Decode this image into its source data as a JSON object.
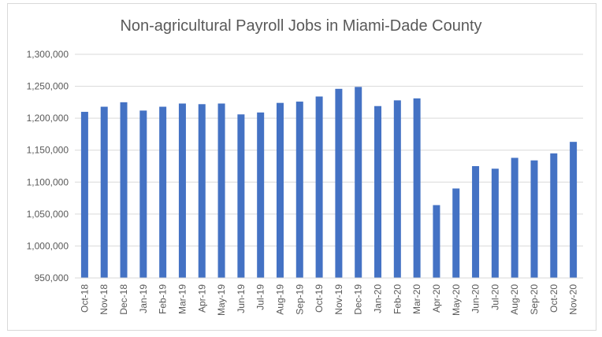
{
  "chart_data": {
    "type": "bar",
    "title": "Non-agricultural Payroll Jobs in Miami-Dade County",
    "xlabel": "",
    "ylabel": "",
    "ylim": [
      950000,
      1300000
    ],
    "yticks": [
      950000,
      1000000,
      1050000,
      1100000,
      1150000,
      1200000,
      1250000,
      1300000
    ],
    "ytick_labels": [
      "950,000",
      "1,000,000",
      "1,050,000",
      "1,100,000",
      "1,150,000",
      "1,200,000",
      "1,250,000",
      "1,300,000"
    ],
    "grid": true,
    "color": "#4472C4",
    "categories": [
      "Oct-18",
      "Nov-18",
      "Dec-18",
      "Jan-19",
      "Feb-19",
      "Mar-19",
      "Apr-19",
      "May-19",
      "Jun-19",
      "Jul-19",
      "Aug-19",
      "Sep-19",
      "Oct-19",
      "Nov-19",
      "Dec-19",
      "Jan-20",
      "Feb-20",
      "Mar-20",
      "Apr-20",
      "May-20",
      "Jun-20",
      "Jul-20",
      "Aug-20",
      "Sep-20",
      "Oct-20",
      "Nov-20"
    ],
    "values": [
      1210000,
      1218000,
      1225000,
      1212000,
      1218000,
      1223000,
      1222000,
      1223000,
      1206000,
      1209000,
      1224000,
      1226000,
      1234000,
      1246000,
      1249000,
      1219000,
      1228000,
      1231000,
      1064000,
      1090000,
      1125000,
      1121000,
      1138000,
      1134000,
      1145000,
      1163000
    ]
  }
}
